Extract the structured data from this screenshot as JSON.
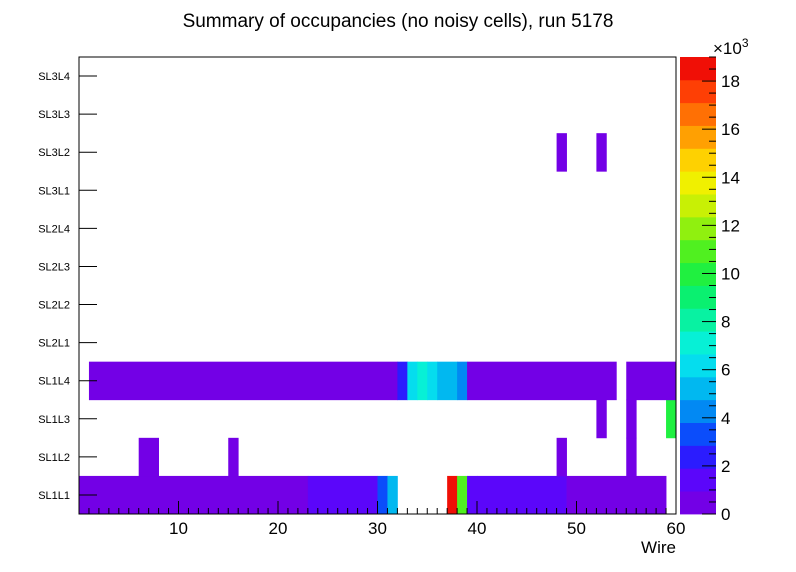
{
  "chart_data": {
    "type": "heatmap",
    "title": "Summary of occupancies (no noisy cells), run 5178",
    "xlabel": "Wire",
    "ylabel": "",
    "xlim": [
      0,
      60
    ],
    "x_ticks": [
      "10",
      "20",
      "30",
      "40",
      "50",
      "60"
    ],
    "x_tick_values": [
      10,
      20,
      30,
      40,
      50,
      60
    ],
    "y_categories": [
      "SL1L1",
      "SL1L2",
      "SL1L3",
      "SL1L4",
      "SL2L1",
      "SL2L2",
      "SL2L3",
      "SL2L4",
      "SL3L1",
      "SL3L2",
      "SL3L3",
      "SL3L4"
    ],
    "z_range": [
      0,
      19000
    ],
    "z_ticks": [
      "0",
      "2",
      "4",
      "6",
      "8",
      "10",
      "12",
      "14",
      "16",
      "18"
    ],
    "z_tick_values": [
      0,
      2000,
      4000,
      6000,
      8000,
      10000,
      12000,
      14000,
      16000,
      18000
    ],
    "z_multiplier": "×10",
    "z_multiplier_exp": "3",
    "palette": [
      "#7300e6",
      "#5b06fa",
      "#2b1cfe",
      "#0b4dfb",
      "#0289f3",
      "#01b8f0",
      "#05ddee",
      "#07f0d6",
      "#08f2a2",
      "#0af070",
      "#20f040",
      "#50f020",
      "#90f00f",
      "#c8f005",
      "#f0f000",
      "#fed101",
      "#ffa002",
      "#ff7004",
      "#fe3f05",
      "#f00f06"
    ],
    "cells": [
      {
        "row": "SL1L1",
        "x0": 0,
        "x1": 23,
        "value": 500
      },
      {
        "row": "SL1L1",
        "x0": 23,
        "x1": 30,
        "value": 1600
      },
      {
        "row": "SL1L1",
        "x0": 30,
        "x1": 31,
        "value": 3600
      },
      {
        "row": "SL1L1",
        "x0": 31,
        "x1": 32,
        "value": 5200
      },
      {
        "row": "SL1L1",
        "x0": 37,
        "x1": 38,
        "value": 18700
      },
      {
        "row": "SL1L1",
        "x0": 38,
        "x1": 39,
        "value": 10500
      },
      {
        "row": "SL1L1",
        "x0": 39,
        "x1": 40,
        "value": 1100
      },
      {
        "row": "SL1L1",
        "x0": 40,
        "x1": 49,
        "value": 1500
      },
      {
        "row": "SL1L1",
        "x0": 49,
        "x1": 59,
        "value": 500
      },
      {
        "row": "SL1L2",
        "x0": 6,
        "x1": 8,
        "value": 500
      },
      {
        "row": "SL1L2",
        "x0": 15,
        "x1": 16,
        "value": 500
      },
      {
        "row": "SL1L2",
        "x0": 48,
        "x1": 49,
        "value": 500
      },
      {
        "row": "SL1L2",
        "x0": 55,
        "x1": 56,
        "value": 500
      },
      {
        "row": "SL1L3",
        "x0": 52,
        "x1": 53,
        "value": 500
      },
      {
        "row": "SL1L3",
        "x0": 55,
        "x1": 56,
        "value": 500
      },
      {
        "row": "SL1L3",
        "x0": 59,
        "x1": 60,
        "value": 10400
      },
      {
        "row": "SL1L4",
        "x0": 1,
        "x1": 32,
        "value": 500
      },
      {
        "row": "SL1L4",
        "x0": 32,
        "x1": 33,
        "value": 2800
      },
      {
        "row": "SL1L4",
        "x0": 33,
        "x1": 34,
        "value": 6400
      },
      {
        "row": "SL1L4",
        "x0": 34,
        "x1": 35,
        "value": 7000
      },
      {
        "row": "SL1L4",
        "x0": 35,
        "x1": 36,
        "value": 6500
      },
      {
        "row": "SL1L4",
        "x0": 36,
        "x1": 38,
        "value": 5000
      },
      {
        "row": "SL1L4",
        "x0": 38,
        "x1": 39,
        "value": 3800
      },
      {
        "row": "SL1L4",
        "x0": 39,
        "x1": 54,
        "value": 500
      },
      {
        "row": "SL1L4",
        "x0": 55,
        "x1": 60,
        "value": 500
      },
      {
        "row": "SL3L2",
        "x0": 48,
        "x1": 49,
        "value": 500
      },
      {
        "row": "SL3L2",
        "x0": 52,
        "x1": 53,
        "value": 500
      }
    ]
  }
}
